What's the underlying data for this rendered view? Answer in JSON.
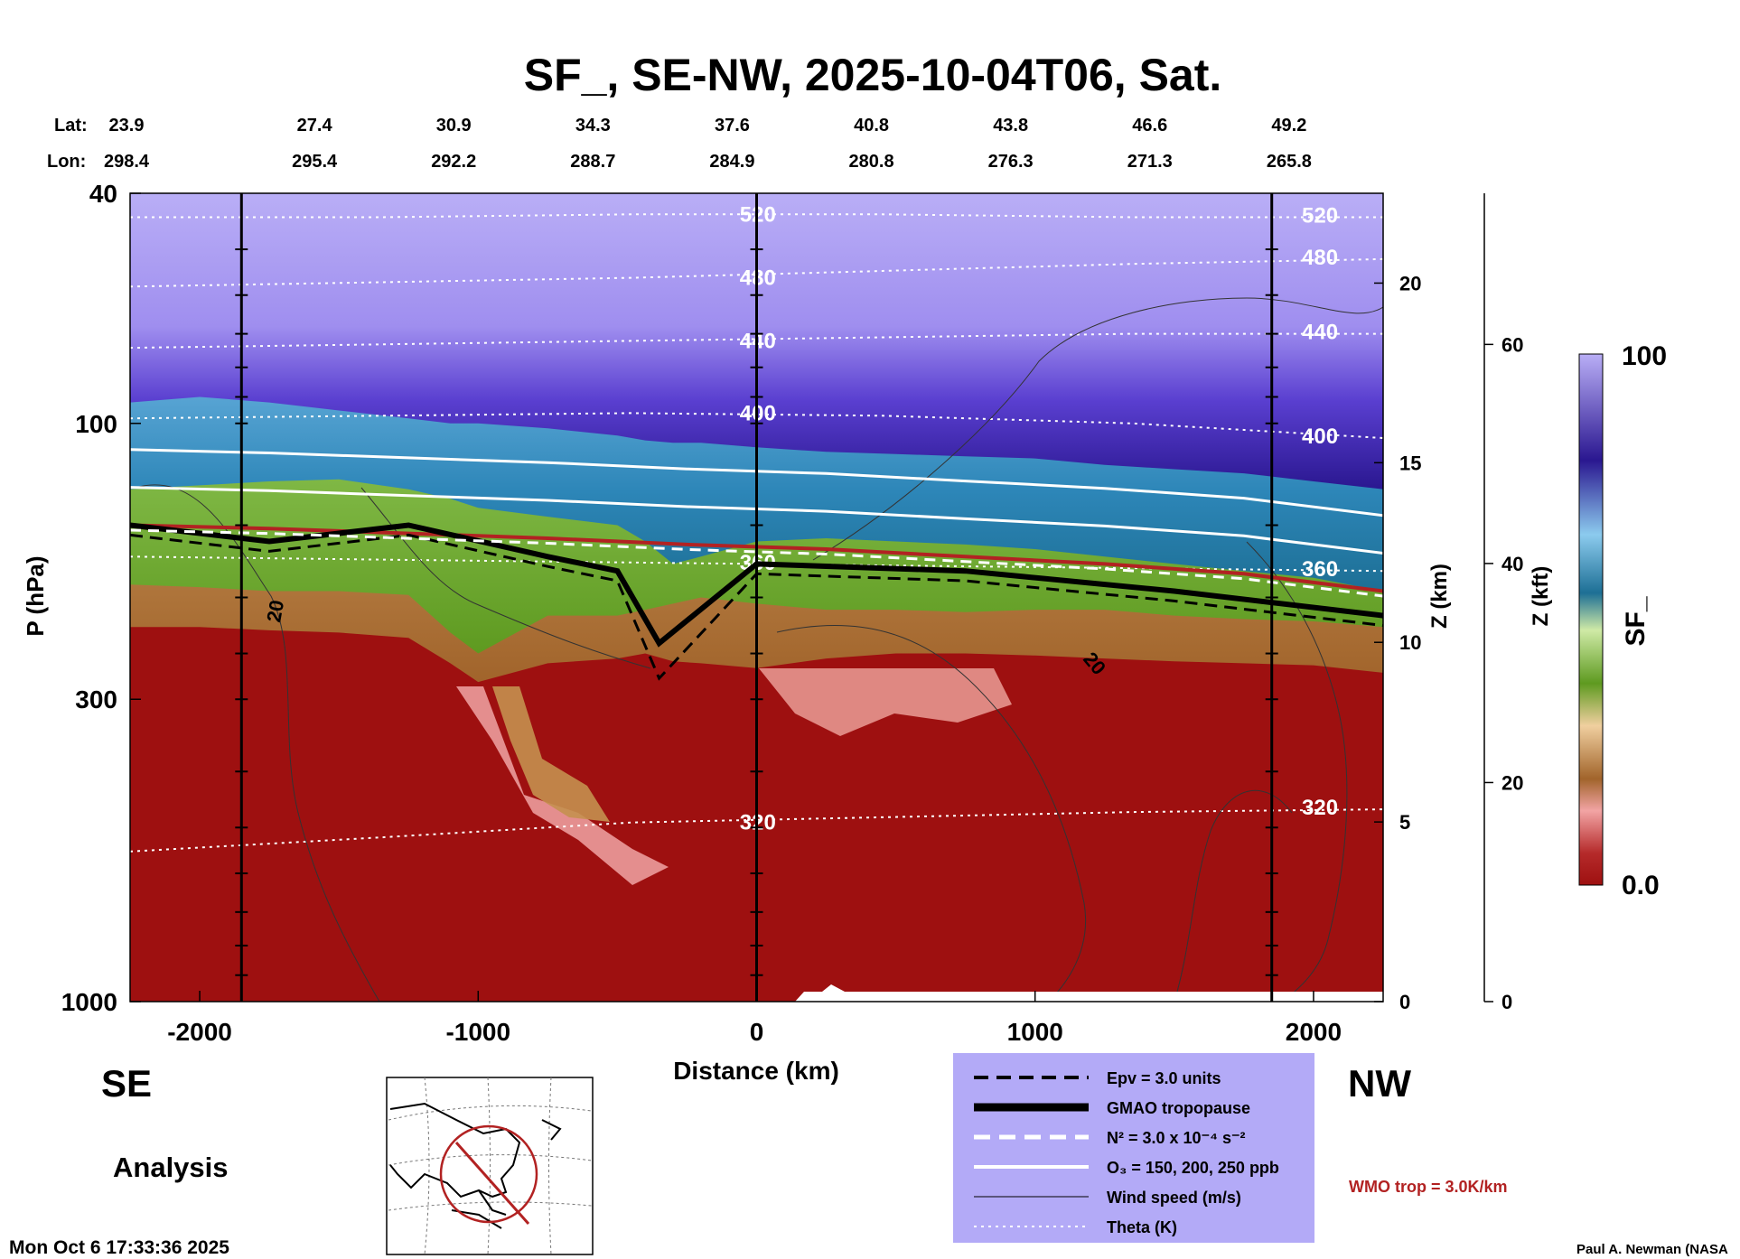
{
  "chart_data": {
    "type": "heatmap",
    "title": "SF_, SE-NW, 2025-10-04T06, Sat.",
    "xlabel": "Distance (km)",
    "ylabel": "P (hPa)",
    "y2label": "Z (km)",
    "y3label": "Z (kft)",
    "xlim": [
      -2250,
      2250
    ],
    "ylim": [
      1000,
      40
    ],
    "y_scale": "log",
    "x_ticks": [
      "-2000",
      "-1000",
      "0",
      "1000",
      "2000"
    ],
    "x_tick_values": [
      -2000,
      -1000,
      0,
      1000,
      2000
    ],
    "y_ticks": [
      "40",
      "100",
      "300",
      "1000"
    ],
    "y_tick_values": [
      40,
      100,
      300,
      1000
    ],
    "zkm_ticks": [
      "0",
      "5",
      "10",
      "15",
      "20"
    ],
    "zkm_tick_values": [
      0,
      5,
      10,
      15,
      20
    ],
    "zkft_ticks": [
      "0",
      "20",
      "40",
      "60"
    ],
    "zkft_tick_values": [
      0,
      20,
      40,
      60
    ],
    "lat_label": "Lat:",
    "lon_label": "Lon:",
    "lat": [
      "23.9",
      "27.4",
      "30.9",
      "34.3",
      "37.6",
      "40.8",
      "43.8",
      "46.6",
      "49.2"
    ],
    "lon": [
      "298.4",
      "295.4",
      "292.2",
      "288.7",
      "284.9",
      "280.8",
      "276.3",
      "271.3",
      "265.8"
    ],
    "coord_x": [
      -2250,
      -1750,
      -1250,
      -750,
      -250,
      250,
      750,
      1250,
      1750
    ],
    "vertical_lines_x": [
      -1850,
      0,
      1850
    ],
    "sf_levels_hpa": {
      "x": [
        -2250,
        -2000,
        -1750,
        -1500,
        -1250,
        -1100,
        -1000,
        -750,
        -500,
        -400,
        -300,
        -200,
        0,
        250,
        500,
        750,
        1000,
        1250,
        1500,
        1750,
        2000,
        2250
      ],
      "purple_base": [
        92,
        90,
        92,
        95,
        98,
        100,
        100,
        102,
        105,
        107,
        108,
        108,
        110,
        112,
        113,
        114,
        115,
        118,
        120,
        122,
        126,
        130
      ],
      "blue_base": [
        130,
        128,
        126,
        125,
        130,
        135,
        140,
        145,
        150,
        160,
        175,
        170,
        160,
        158,
        160,
        162,
        165,
        170,
        175,
        180,
        185,
        195
      ],
      "green_base": [
        190,
        192,
        195,
        195,
        198,
        230,
        250,
        215,
        215,
        210,
        205,
        200,
        205,
        210,
        210,
        212,
        210,
        210,
        215,
        218,
        220,
        225
      ],
      "tan_base": [
        225,
        225,
        228,
        230,
        235,
        260,
        280,
        260,
        255,
        250,
        258,
        260,
        265,
        255,
        250,
        250,
        252,
        255,
        258,
        260,
        262,
        270
      ]
    },
    "theta_lines": [
      {
        "label": "520",
        "p": [
          44,
          44,
          43.5,
          43.5,
          44,
          44
        ]
      },
      {
        "label": "480",
        "p": [
          58,
          57,
          56,
          54.5,
          53,
          52
        ]
      },
      {
        "label": "440",
        "p": [
          74,
          73,
          72,
          71,
          70,
          70
        ]
      },
      {
        "label": "400",
        "p": [
          98,
          97,
          96,
          97,
          100,
          106
        ]
      },
      {
        "label": "360",
        "p": [
          170,
          172,
          174,
          176,
          178,
          180
        ]
      },
      {
        "label": "320",
        "p": [
          550,
          520,
          490,
          480,
          470,
          465
        ]
      }
    ],
    "theta_x": [
      -2250,
      -1350,
      -450,
      450,
      1350,
      2250
    ],
    "wind_label": "20",
    "wmo_trop_p": [
      150,
      152,
      155,
      158,
      162,
      165,
      170,
      175,
      182,
      195
    ],
    "wmo_trop_x": [
      -2250,
      -1750,
      -1250,
      -750,
      -250,
      250,
      750,
      1250,
      1750,
      2250
    ],
    "gmao_trop_p": [
      150,
      160,
      150,
      170,
      180,
      240,
      175,
      180,
      195,
      215
    ],
    "gmao_trop_x": [
      -2250,
      -1750,
      -1250,
      -750,
      -500,
      -350,
      0,
      750,
      1500,
      2250
    ],
    "colorbar": {
      "label": "SF_",
      "min_label": "0.0",
      "max_label": "100"
    },
    "legend": [
      {
        "label": "Epv = 3.0 units",
        "style": "black-dash"
      },
      {
        "label": "GMAO tropopause",
        "style": "black-thick"
      },
      {
        "label": "N² = 3.0 x 10⁻⁴ s⁻²",
        "style": "white-dash"
      },
      {
        "label": "O₃ = 150, 200, 250 ppb",
        "style": "white-solid"
      },
      {
        "label": "Wind speed (m/s)",
        "style": "black-thin"
      },
      {
        "label": "Theta (K)",
        "style": "white-dot"
      }
    ],
    "wmo_label": "WMO trop = 3.0K/km",
    "colors": {
      "legend_bg": "#b3aaf7",
      "wmo": "#b22222",
      "red": "#9e1010",
      "purple_top": "#b8acf5",
      "purple_dark": "#2a1790"
    }
  },
  "labels": {
    "left_dir": "SE",
    "right_dir": "NW",
    "analysis": "Analysis",
    "timestamp": "Mon Oct  6 17:33:36 2025",
    "credit": "Paul A. Newman (NASA"
  }
}
